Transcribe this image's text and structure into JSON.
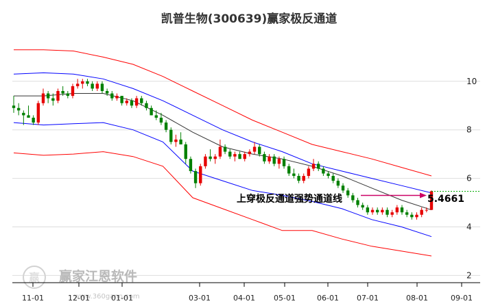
{
  "chart_data": {
    "type": "candlestick",
    "title": "凯普生物(300639)赢家极反通道",
    "x_tick_labels": [
      "11-01",
      "12-01",
      "01-01",
      "03-01",
      "04-01",
      "05-01",
      "06-01",
      "07-01",
      "08-01",
      "09-01"
    ],
    "y_ticks": [
      2,
      4,
      6,
      8,
      10
    ],
    "ylim": [
      1.7,
      11.8
    ],
    "grid": "horizontal",
    "annotation": {
      "text": "上穿极反通道强势通道线",
      "value_label": "5.4661",
      "value": 5.4661
    },
    "watermark": {
      "text": "赢家江恩软件",
      "url": "www.360gann.com",
      "logo_text": "赢"
    },
    "colors": {
      "up": "#e60000",
      "down": "#008000",
      "upper_outer_band": "#ff0000",
      "upper_band": "#0000ff",
      "middle_line": "#333333",
      "lower_band": "#0000ff",
      "lower_outer_band": "#ff0000",
      "annotation_arrow": "#cc0066",
      "reference_line": "#00aa00"
    },
    "candles": [
      [
        9.0,
        9.4,
        8.7,
        8.9
      ],
      [
        8.9,
        9.1,
        8.6,
        8.8
      ],
      [
        8.7,
        8.8,
        8.2,
        8.6
      ],
      [
        8.6,
        9.0,
        8.5,
        8.5
      ],
      [
        8.5,
        8.6,
        8.2,
        8.3
      ],
      [
        8.3,
        9.2,
        8.2,
        9.1
      ],
      [
        9.1,
        9.7,
        9.0,
        9.5
      ],
      [
        9.5,
        9.6,
        9.1,
        9.3
      ],
      [
        9.3,
        9.5,
        9.0,
        9.2
      ],
      [
        9.2,
        9.7,
        9.1,
        9.6
      ],
      [
        9.6,
        9.8,
        9.4,
        9.5
      ],
      [
        9.5,
        9.6,
        9.3,
        9.4
      ],
      [
        9.4,
        9.9,
        9.3,
        9.8
      ],
      [
        9.8,
        10.1,
        9.7,
        9.9
      ],
      [
        9.9,
        10.1,
        9.7,
        10.0
      ],
      [
        10.0,
        10.1,
        9.8,
        9.9
      ],
      [
        9.9,
        10.0,
        9.6,
        9.7
      ],
      [
        9.7,
        10.0,
        9.6,
        9.9
      ],
      [
        9.9,
        10.0,
        9.5,
        9.6
      ],
      [
        9.6,
        9.7,
        9.4,
        9.5
      ],
      [
        9.5,
        9.6,
        9.2,
        9.3
      ],
      [
        9.3,
        9.5,
        9.2,
        9.4
      ],
      [
        9.4,
        9.4,
        9.0,
        9.1
      ],
      [
        9.1,
        9.3,
        9.0,
        9.2
      ],
      [
        9.2,
        9.3,
        8.9,
        9.0
      ],
      [
        9.0,
        9.4,
        8.9,
        9.3
      ],
      [
        9.3,
        9.4,
        9.0,
        9.1
      ],
      [
        9.1,
        9.2,
        8.8,
        8.9
      ],
      [
        8.9,
        9.0,
        8.6,
        8.6
      ],
      [
        8.6,
        8.8,
        8.4,
        8.5
      ],
      [
        8.5,
        8.7,
        8.2,
        8.3
      ],
      [
        8.3,
        8.4,
        7.9,
        8.0
      ],
      [
        8.0,
        8.1,
        7.4,
        7.5
      ],
      [
        7.5,
        7.8,
        7.3,
        7.6
      ],
      [
        7.6,
        7.9,
        7.4,
        7.4
      ],
      [
        7.4,
        7.5,
        6.6,
        6.8
      ],
      [
        6.8,
        6.9,
        6.2,
        6.3
      ],
      [
        6.3,
        6.4,
        5.6,
        5.8
      ],
      [
        5.8,
        6.6,
        5.7,
        6.5
      ],
      [
        6.5,
        7.0,
        6.4,
        6.9
      ],
      [
        6.9,
        7.2,
        6.7,
        6.8
      ],
      [
        6.8,
        7.0,
        6.6,
        6.9
      ],
      [
        6.9,
        7.6,
        6.8,
        7.3
      ],
      [
        7.3,
        7.4,
        7.0,
        7.1
      ],
      [
        7.1,
        7.2,
        6.8,
        6.9
      ],
      [
        6.9,
        7.1,
        6.7,
        7.0
      ],
      [
        7.0,
        7.1,
        6.8,
        6.8
      ],
      [
        6.8,
        7.1,
        6.7,
        7.0
      ],
      [
        7.0,
        7.2,
        6.9,
        7.1
      ],
      [
        7.1,
        7.5,
        7.0,
        7.3
      ],
      [
        7.3,
        7.4,
        6.9,
        7.0
      ],
      [
        7.0,
        7.1,
        6.6,
        6.7
      ],
      [
        6.7,
        7.0,
        6.6,
        6.9
      ],
      [
        6.9,
        7.0,
        6.5,
        6.6
      ],
      [
        6.6,
        6.9,
        6.4,
        6.8
      ],
      [
        6.8,
        6.9,
        6.4,
        6.5
      ],
      [
        6.5,
        6.6,
        6.1,
        6.2
      ],
      [
        6.2,
        6.4,
        6.0,
        6.1
      ],
      [
        6.1,
        6.2,
        5.8,
        5.9
      ],
      [
        5.9,
        6.2,
        5.8,
        6.1
      ],
      [
        6.1,
        6.5,
        6.0,
        6.4
      ],
      [
        6.4,
        6.8,
        6.3,
        6.6
      ],
      [
        6.6,
        6.7,
        6.3,
        6.4
      ],
      [
        6.4,
        6.5,
        6.1,
        6.2
      ],
      [
        6.2,
        6.3,
        6.0,
        6.1
      ],
      [
        6.1,
        6.2,
        5.8,
        5.9
      ],
      [
        5.9,
        6.0,
        5.6,
        5.7
      ],
      [
        5.7,
        5.8,
        5.4,
        5.5
      ],
      [
        5.5,
        5.6,
        5.2,
        5.3
      ],
      [
        5.3,
        5.4,
        5.0,
        5.1
      ],
      [
        5.1,
        5.2,
        4.8,
        4.9
      ],
      [
        4.9,
        5.0,
        4.7,
        4.8
      ],
      [
        4.8,
        4.9,
        4.5,
        4.6
      ],
      [
        4.6,
        4.8,
        4.5,
        4.7
      ],
      [
        4.7,
        4.8,
        4.5,
        4.6
      ],
      [
        4.6,
        4.8,
        4.5,
        4.7
      ],
      [
        4.7,
        4.8,
        4.4,
        4.5
      ],
      [
        4.5,
        4.7,
        4.4,
        4.6
      ],
      [
        4.6,
        4.9,
        4.5,
        4.8
      ],
      [
        4.8,
        4.9,
        4.5,
        4.6
      ],
      [
        4.6,
        4.7,
        4.4,
        4.5
      ],
      [
        4.5,
        4.6,
        4.3,
        4.4
      ],
      [
        4.4,
        4.6,
        4.3,
        4.5
      ],
      [
        4.5,
        4.8,
        4.4,
        4.7
      ],
      [
        4.7,
        4.8,
        4.6,
        4.7
      ],
      [
        4.7,
        5.5,
        4.7,
        5.47
      ]
    ],
    "bands": {
      "upper_outer": [
        11.3,
        11.3,
        11.25,
        11.0,
        10.7,
        10.2,
        9.6,
        9.0,
        8.4,
        7.9,
        7.4,
        7.1,
        6.8,
        6.45,
        6.1
      ],
      "upper": [
        10.3,
        10.35,
        10.3,
        10.1,
        9.7,
        9.2,
        8.6,
        8.0,
        7.5,
        7.1,
        6.6,
        6.3,
        6.0,
        5.7,
        5.4
      ],
      "middle": [
        9.4,
        9.4,
        9.5,
        9.5,
        9.2,
        8.6,
        7.9,
        7.3,
        7.0,
        6.8,
        6.5,
        6.1,
        5.6,
        5.1,
        4.7
      ],
      "lower": [
        8.3,
        8.2,
        8.25,
        8.3,
        8.0,
        7.5,
        6.3,
        5.9,
        5.5,
        5.3,
        5.05,
        4.75,
        4.3,
        4.0,
        3.6
      ],
      "lower_outer": [
        7.05,
        6.95,
        7.0,
        7.1,
        6.9,
        6.5,
        5.2,
        4.75,
        4.3,
        3.85,
        3.85,
        3.5,
        3.2,
        3.0,
        2.8
      ]
    }
  }
}
